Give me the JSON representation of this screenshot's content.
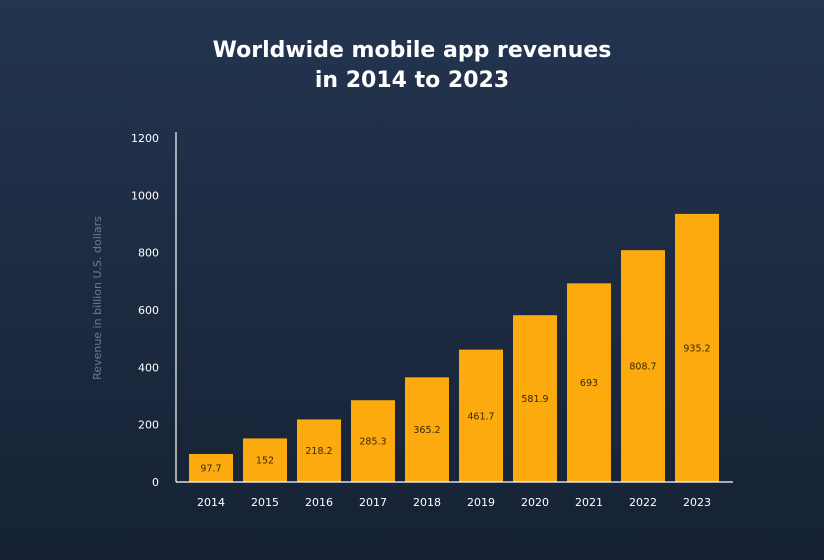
{
  "title": {
    "line1": "Worldwide mobile app revenues",
    "line2": "in 2014 to 2023"
  },
  "chart_data": {
    "type": "bar",
    "title": "Worldwide mobile app revenues in 2014 to 2023",
    "xlabel": "",
    "ylabel": "Revenue in billion U.S. dollars",
    "categories": [
      "2014",
      "2015",
      "2016",
      "2017",
      "2018",
      "2019",
      "2020",
      "2021",
      "2022",
      "2023"
    ],
    "values": [
      97.7,
      152,
      218.2,
      285.3,
      365.2,
      461.7,
      581.9,
      693,
      808.7,
      935.2
    ],
    "value_labels": [
      "97.7",
      "152",
      "218.2",
      "285.3",
      "365.2",
      "461.7",
      "581.9",
      "693",
      "808.7",
      "935.2"
    ],
    "ylim": [
      0,
      1200
    ],
    "yticks": [
      0,
      200,
      400,
      600,
      800,
      1000,
      1200
    ],
    "grid": false,
    "legend": "none",
    "bar_color": "#fcaa0d",
    "label_color": "#3a2a05",
    "axis_color": "#ffffff"
  }
}
